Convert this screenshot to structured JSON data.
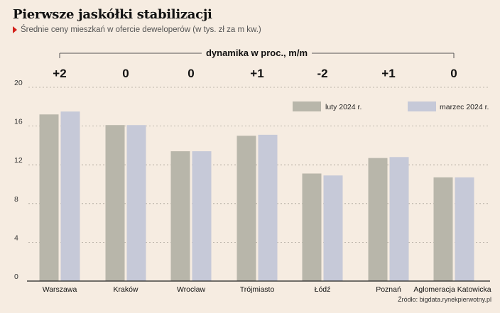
{
  "header": {
    "title": "Pierwsze jaskółki stabilizacji",
    "subtitle": "Średnie ceny mieszkań w ofercie deweloperów (w tys. zł za m kw.)",
    "source": "Źródło: bigdata.rynekpierwotny.pl"
  },
  "chart_data": {
    "type": "bar",
    "categories": [
      "Warszawa",
      "Kraków",
      "Wrocław",
      "Trójmiasto",
      "Łódź",
      "Poznań",
      "Aglomeracja Katowicka"
    ],
    "series": [
      {
        "name": "luty 2024 r.",
        "color": "#b8b6aa",
        "values": [
          17.2,
          16.1,
          13.4,
          15.0,
          11.1,
          12.7,
          10.7
        ]
      },
      {
        "name": "marzec 2024 r.",
        "color": "#c6c9d8",
        "values": [
          17.5,
          16.1,
          13.4,
          15.1,
          10.9,
          12.8,
          10.7
        ]
      }
    ],
    "dynamics_label": "dynamika w proc., m/m",
    "dynamics": [
      "+2",
      "0",
      "0",
      "+1",
      "-2",
      "+1",
      "0"
    ],
    "dynamics_negative_color": "#d2201a",
    "ylim": [
      0,
      20
    ],
    "yticks": [
      0,
      4,
      8,
      12,
      16,
      20
    ],
    "grid": true,
    "legend_position": "top-right"
  }
}
